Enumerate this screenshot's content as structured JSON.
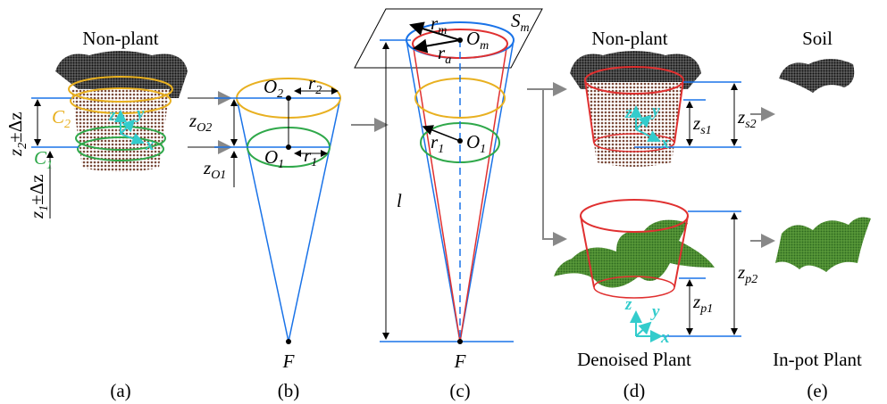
{
  "panels": [
    {
      "caption": "(a)",
      "title": "Non-plant",
      "labels": {
        "c2": {
          "main": "C",
          "sub": "2"
        },
        "c1": {
          "main": "C",
          "sub": "1"
        },
        "z2": {
          "main": "z",
          "sub": "2",
          "after": "±Δz"
        },
        "z1": {
          "main": "z",
          "sub": "1",
          "after": "±Δz"
        },
        "x": "x",
        "y": "y",
        "z": "z"
      }
    },
    {
      "caption": "(b)",
      "labels": {
        "o2": {
          "main": "O",
          "sub": "2"
        },
        "r2": {
          "main": "r",
          "sub": "2"
        },
        "zo2": {
          "main": "z",
          "sub": "O2"
        },
        "o1": {
          "main": "O",
          "sub": "1"
        },
        "r1": {
          "main": "r",
          "sub": "1"
        },
        "zo1": {
          "main": "z",
          "sub": "O1"
        },
        "f": "F"
      }
    },
    {
      "caption": "(c)",
      "labels": {
        "rm": {
          "main": "r",
          "sub": "m"
        },
        "om": {
          "main": "O",
          "sub": "m"
        },
        "ra": {
          "main": "r",
          "sub": "a"
        },
        "sm": {
          "main": "S",
          "sub": "m"
        },
        "r1": {
          "main": "r",
          "sub": "1"
        },
        "o1": {
          "main": "O",
          "sub": "1"
        },
        "l": "l",
        "f": "F"
      }
    },
    {
      "caption": "(d)",
      "title": "Non-plant",
      "subtitle": "Denoised Plant",
      "labels": {
        "zs2": {
          "main": "z",
          "sub": "s2"
        },
        "zs1": {
          "main": "z",
          "sub": "s1"
        },
        "zp2": {
          "main": "z",
          "sub": "p2"
        },
        "zp1": {
          "main": "z",
          "sub": "p1"
        },
        "x1": "x",
        "y1": "y",
        "z1": "z",
        "x2": "x",
        "y2": "y",
        "z2": "z"
      }
    },
    {
      "caption": "(e)",
      "title": "Soil",
      "subtitle": "In-pot Plant"
    }
  ]
}
